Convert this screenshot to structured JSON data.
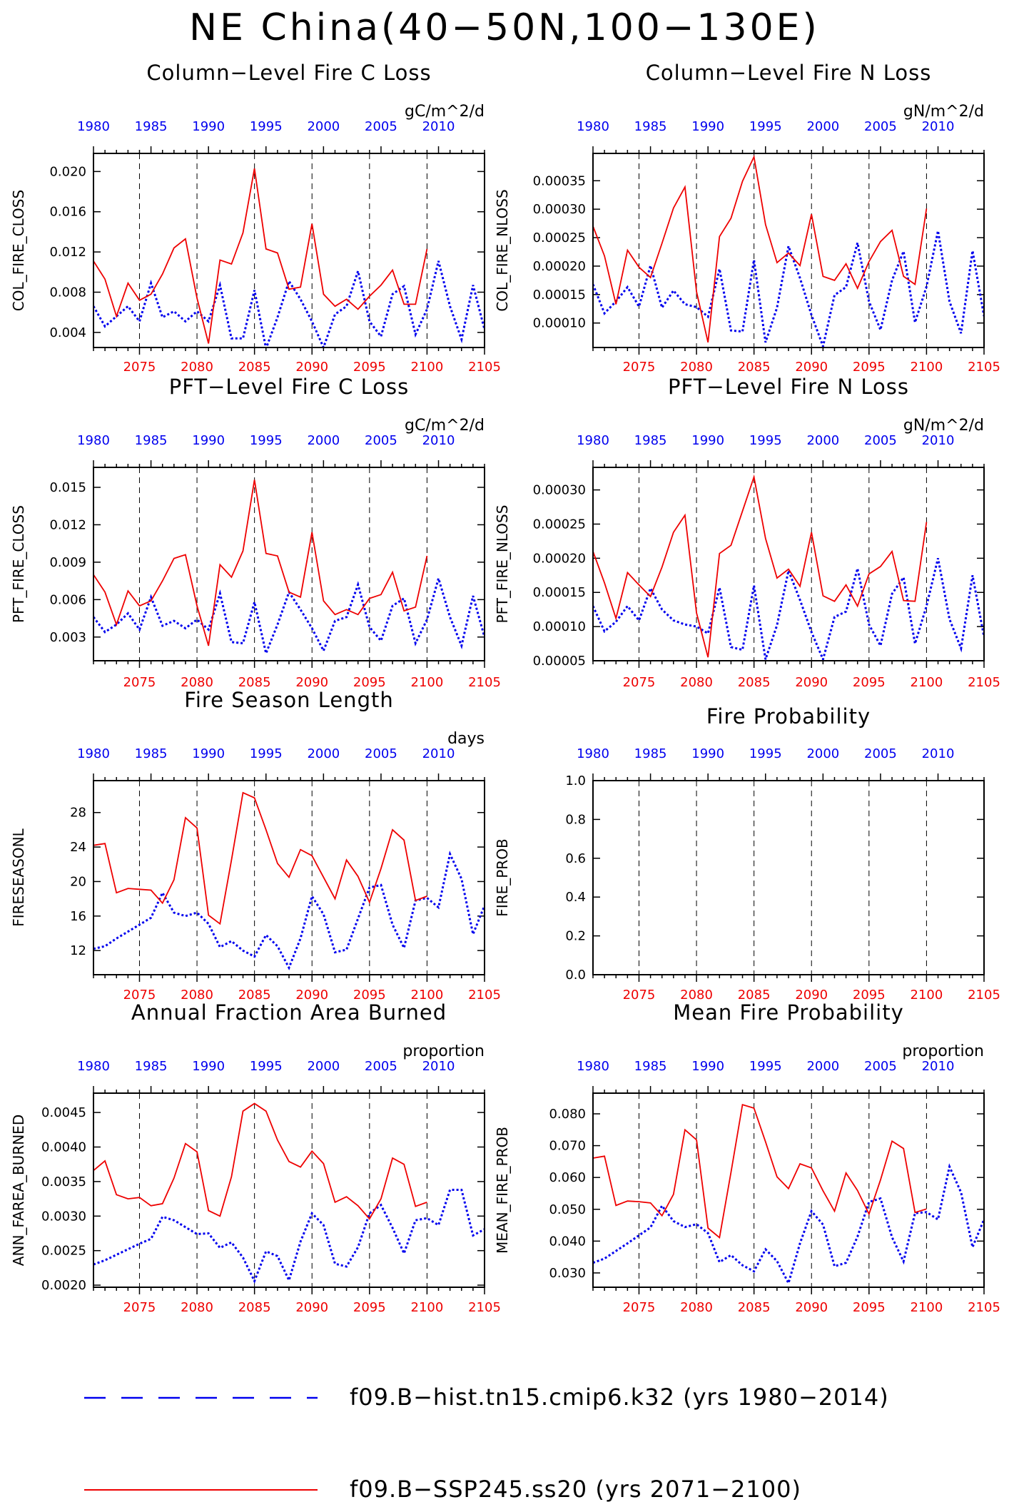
{
  "title": "NE China(40−50N,100−130E)",
  "colors": {
    "hist": "#0000ee",
    "future": "#ee0000",
    "axis": "#000000"
  },
  "legend": [
    {
      "series": "hist",
      "label": "f09.B−hist.tn15.cmip6.k32 (yrs 1980−2014)"
    },
    {
      "series": "future",
      "label": "f09.B−SSP245.ss20 (yrs 2071−2100)"
    }
  ],
  "chart_data": [
    {
      "type": "line",
      "title": "Column−Level Fire C Loss",
      "units": "gC/m^2/d",
      "ylabel": "COL_FIRE_CLOSS",
      "ylim": [
        0.0025,
        0.0218
      ],
      "yticks": [
        0.004,
        0.008,
        0.012,
        0.016,
        0.02
      ],
      "ytick_labels": [
        "0.004",
        "0.008",
        "0.012",
        "0.016",
        "0.020"
      ],
      "bottom_axis": {
        "range": [
          2071,
          2105
        ],
        "ticks": [
          2075,
          2080,
          2085,
          2090,
          2095,
          2100,
          2105
        ]
      },
      "top_axis": {
        "range": [
          1980,
          2014
        ],
        "ticks": [
          1980,
          1985,
          1990,
          1995,
          2000,
          2005,
          2010
        ]
      },
      "grid": "dashed vertical lines at 5-year ticks",
      "series": [
        {
          "key": "hist",
          "years": [
            1980,
            2014
          ],
          "values": [
            0.0066,
            0.0046,
            0.0056,
            0.0066,
            0.0051,
            0.0089,
            0.0055,
            0.0061,
            0.0051,
            0.0061,
            0.0051,
            0.0087,
            0.0034,
            0.0034,
            0.0082,
            0.0024,
            0.0055,
            0.0091,
            0.0073,
            0.0051,
            0.0025,
            0.0058,
            0.0066,
            0.0101,
            0.0051,
            0.0036,
            0.0078,
            0.0086,
            0.0038,
            0.0063,
            0.0111,
            0.0066,
            0.0033,
            0.0087,
            0.0043
          ]
        },
        {
          "key": "future",
          "years": [
            2071,
            2100
          ],
          "values": [
            0.0111,
            0.0093,
            0.0056,
            0.0089,
            0.0072,
            0.0078,
            0.0098,
            0.0124,
            0.0133,
            0.0074,
            0.0029,
            0.0112,
            0.0108,
            0.0139,
            0.0203,
            0.0123,
            0.0119,
            0.0083,
            0.0085,
            0.0148,
            0.0078,
            0.0066,
            0.0073,
            0.0063,
            0.0076,
            0.0087,
            0.0102,
            0.0068,
            0.0068,
            0.0123
          ]
        }
      ]
    },
    {
      "type": "line",
      "title": "Column−Level Fire N Loss",
      "units": "gN/m^2/d",
      "ylabel": "COL_FIRE_NLOSS",
      "ylim": [
        5.7e-05,
        0.000398
      ],
      "yticks": [
        0.0001,
        0.00015,
        0.0002,
        0.00025,
        0.0003,
        0.00035
      ],
      "ytick_labels": [
        "0.00010",
        "0.00015",
        "0.00020",
        "0.00025",
        "0.00030",
        "0.00035"
      ],
      "bottom_axis": {
        "range": [
          2071,
          2105
        ],
        "ticks": [
          2075,
          2080,
          2085,
          2090,
          2095,
          2100,
          2105
        ]
      },
      "top_axis": {
        "range": [
          1980,
          2014
        ],
        "ticks": [
          1980,
          1985,
          1990,
          1995,
          2000,
          2005,
          2010
        ]
      },
      "grid": "dashed vertical lines at 5-year ticks",
      "series": [
        {
          "key": "hist",
          "years": [
            1980,
            2014
          ],
          "values": [
            0.000168,
            0.000117,
            0.000138,
            0.000163,
            0.000129,
            0.000201,
            0.000127,
            0.000157,
            0.000133,
            0.000128,
            0.000111,
            0.000195,
            8.7e-05,
            8.5e-05,
            0.000211,
            6.6e-05,
            0.000127,
            0.000235,
            0.000179,
            0.000114,
            5.9e-05,
            0.000149,
            0.000163,
            0.000241,
            0.000138,
            8.8e-05,
            0.000175,
            0.000226,
            0.000101,
            0.000164,
            0.000262,
            0.000138,
            8.2e-05,
            0.000227,
            0.000112
          ]
        },
        {
          "key": "future",
          "years": [
            2071,
            2100
          ],
          "values": [
            0.00027,
            0.000218,
            0.000133,
            0.000228,
            0.000198,
            0.00018,
            0.00024,
            0.000302,
            0.000339,
            0.000155,
            6.6e-05,
            0.000252,
            0.000284,
            0.000349,
            0.000392,
            0.000273,
            0.000206,
            0.000223,
            0.000201,
            0.000291,
            0.000182,
            0.000175,
            0.000204,
            0.000161,
            0.000208,
            0.000243,
            0.000263,
            0.000182,
            0.000168,
            0.000301
          ]
        }
      ]
    },
    {
      "type": "line",
      "title": "PFT−Level Fire C Loss",
      "units": "gC/m^2/d",
      "ylabel": "PFT_FIRE_CLOSS",
      "ylim": [
        0.0011,
        0.0166
      ],
      "yticks": [
        0.003,
        0.006,
        0.009,
        0.012,
        0.015
      ],
      "ytick_labels": [
        "0.003",
        "0.006",
        "0.009",
        "0.012",
        "0.015"
      ],
      "bottom_axis": {
        "range": [
          2071,
          2105
        ],
        "ticks": [
          2075,
          2080,
          2085,
          2090,
          2095,
          2100,
          2105
        ]
      },
      "top_axis": {
        "range": [
          1980,
          2014
        ],
        "ticks": [
          1980,
          1985,
          1990,
          1995,
          2000,
          2005,
          2010
        ]
      },
      "grid": "dashed vertical lines at 5-year ticks",
      "series": [
        {
          "key": "hist",
          "years": [
            1980,
            2014
          ],
          "values": [
            0.0046,
            0.0034,
            0.004,
            0.0049,
            0.0036,
            0.0062,
            0.0039,
            0.0043,
            0.0037,
            0.0044,
            0.0036,
            0.0065,
            0.0026,
            0.0025,
            0.0058,
            0.0017,
            0.004,
            0.0066,
            0.0052,
            0.0037,
            0.0019,
            0.0043,
            0.0046,
            0.0072,
            0.0038,
            0.0027,
            0.0055,
            0.0061,
            0.0025,
            0.0044,
            0.0077,
            0.0046,
            0.0023,
            0.0063,
            0.003
          ]
        },
        {
          "key": "future",
          "years": [
            2071,
            2100
          ],
          "values": [
            0.008,
            0.0066,
            0.004,
            0.0067,
            0.0055,
            0.0059,
            0.0075,
            0.0093,
            0.0096,
            0.0055,
            0.0023,
            0.0088,
            0.0078,
            0.0099,
            0.0156,
            0.0097,
            0.0095,
            0.0066,
            0.0062,
            0.0114,
            0.0059,
            0.0048,
            0.0052,
            0.0048,
            0.0061,
            0.0064,
            0.0082,
            0.0051,
            0.0054,
            0.0095
          ]
        }
      ]
    },
    {
      "type": "line",
      "title": "PFT−Level Fire N Loss",
      "units": "gN/m^2/d",
      "ylabel": "PFT_FIRE_NLOSS",
      "ylim": [
        5e-05,
        0.000333
      ],
      "yticks": [
        5e-05,
        0.0001,
        0.00015,
        0.0002,
        0.00025,
        0.0003
      ],
      "ytick_labels": [
        "0.00005",
        "0.00010",
        "0.00015",
        "0.00020",
        "0.00025",
        "0.00030"
      ],
      "bottom_axis": {
        "range": [
          2071,
          2105
        ],
        "ticks": [
          2075,
          2080,
          2085,
          2090,
          2095,
          2100,
          2105
        ]
      },
      "top_axis": {
        "range": [
          1980,
          2014
        ],
        "ticks": [
          1980,
          1985,
          1990,
          1995,
          2000,
          2005,
          2010
        ]
      },
      "grid": "dashed vertical lines at 5-year ticks",
      "series": [
        {
          "key": "hist",
          "years": [
            1980,
            2014
          ],
          "values": [
            0.00013,
            9.3e-05,
            0.000107,
            0.00013,
            0.000109,
            0.000156,
            0.000125,
            0.000109,
            0.000103,
            0.0001,
            9e-05,
            0.000157,
            7e-05,
            6.6e-05,
            0.00016,
            5.2e-05,
            0.000102,
            0.000182,
            0.000139,
            9.2e-05,
            5.2e-05,
            0.000114,
            0.000122,
            0.000185,
            0.000103,
            7.2e-05,
            0.000148,
            0.000172,
            7.5e-05,
            0.00013,
            0.0002,
            0.000111,
            6.8e-05,
            0.000175,
            8.5e-05
          ]
        },
        {
          "key": "future",
          "years": [
            2071,
            2100
          ],
          "values": [
            0.00021,
            0.000164,
            0.000112,
            0.000179,
            0.000161,
            0.000144,
            0.000187,
            0.000238,
            0.000263,
            0.00012,
            5.5e-05,
            0.000207,
            0.000219,
            0.000269,
            0.000319,
            0.000229,
            0.000171,
            0.000184,
            0.000159,
            0.000238,
            0.000145,
            0.000137,
            0.000161,
            0.00013,
            0.000177,
            0.000188,
            0.00021,
            0.000138,
            0.000137,
            0.000253
          ]
        }
      ]
    },
    {
      "type": "line",
      "title": "Fire Season Length",
      "units": "days",
      "ylabel": "FIRESEASONL",
      "ylim": [
        9.2,
        31.7
      ],
      "yticks": [
        12,
        16,
        20,
        24,
        28
      ],
      "ytick_labels": [
        "12",
        "16",
        "20",
        "24",
        "28"
      ],
      "bottom_axis": {
        "range": [
          2071,
          2105
        ],
        "ticks": [
          2075,
          2080,
          2085,
          2090,
          2095,
          2100,
          2105
        ]
      },
      "top_axis": {
        "range": [
          1980,
          2014
        ],
        "ticks": [
          1980,
          1985,
          1990,
          1995,
          2000,
          2005,
          2010
        ]
      },
      "grid": "dashed vertical lines at 5-year ticks",
      "series": [
        {
          "key": "hist",
          "years": [
            1980,
            2014
          ],
          "values": [
            12.2,
            12.5,
            13.4,
            14.2,
            15.0,
            15.8,
            18.7,
            16.4,
            16.0,
            16.4,
            15.1,
            12.4,
            13.1,
            12.0,
            11.3,
            13.8,
            12.5,
            10.0,
            13.4,
            18.3,
            16.2,
            11.8,
            12.1,
            15.7,
            19.3,
            19.6,
            15.0,
            12.3,
            17.8,
            18.1,
            17.0,
            23.2,
            20.3,
            13.9,
            17.2
          ]
        },
        {
          "key": "future",
          "years": [
            2071,
            2100
          ],
          "values": [
            24.2,
            24.4,
            18.7,
            19.2,
            19.1,
            19.0,
            17.5,
            20.2,
            27.4,
            26.2,
            16.1,
            15.1,
            22.5,
            30.3,
            29.7,
            26.0,
            22.1,
            20.5,
            23.7,
            23.0,
            20.5,
            18.0,
            22.5,
            20.6,
            17.6,
            21.5,
            26.0,
            24.8,
            17.8,
            18.3
          ]
        }
      ]
    },
    {
      "type": "line",
      "title": "Fire Probability",
      "units": "",
      "ylabel": "FIRE_PROB",
      "ylim": [
        0.0,
        1.0
      ],
      "yticks": [
        0.0,
        0.2,
        0.4,
        0.6,
        0.8,
        1.0
      ],
      "ytick_labels": [
        "0.0",
        "0.2",
        "0.4",
        "0.6",
        "0.8",
        "1.0"
      ],
      "bottom_axis": {
        "range": [
          2071,
          2105
        ],
        "ticks": [
          2075,
          2080,
          2085,
          2090,
          2095,
          2100,
          2105
        ]
      },
      "top_axis": {
        "range": [
          1980,
          2014
        ],
        "ticks": [
          1980,
          1985,
          1990,
          1995,
          2000,
          2005,
          2010
        ]
      },
      "grid": "dashed vertical lines at 5-year ticks",
      "series": []
    },
    {
      "type": "line",
      "title": "Annual Fraction Area Burned",
      "units": "proportion",
      "ylabel": "ANN_FAREA_BURNED",
      "ylim": [
        0.00197,
        0.00478
      ],
      "yticks": [
        0.002,
        0.0025,
        0.003,
        0.0035,
        0.004,
        0.0045
      ],
      "ytick_labels": [
        "0.0020",
        "0.0025",
        "0.0030",
        "0.0035",
        "0.0040",
        "0.0045"
      ],
      "bottom_axis": {
        "range": [
          2071,
          2105
        ],
        "ticks": [
          2075,
          2080,
          2085,
          2090,
          2095,
          2100,
          2105
        ]
      },
      "top_axis": {
        "range": [
          1980,
          2014
        ],
        "ticks": [
          1980,
          1985,
          1990,
          1995,
          2000,
          2005,
          2010
        ]
      },
      "grid": "dashed vertical lines at 5-year ticks",
      "series": [
        {
          "key": "hist",
          "years": [
            1980,
            2014
          ],
          "values": [
            0.0023,
            0.00236,
            0.00244,
            0.00252,
            0.0026,
            0.00267,
            0.00299,
            0.00294,
            0.00284,
            0.00274,
            0.00275,
            0.00254,
            0.00262,
            0.0024,
            0.00206,
            0.00249,
            0.00242,
            0.00207,
            0.00263,
            0.00304,
            0.00287,
            0.00231,
            0.00227,
            0.00255,
            0.00304,
            0.00316,
            0.00283,
            0.00246,
            0.00294,
            0.00297,
            0.00287,
            0.00338,
            0.00338,
            0.00272,
            0.00281
          ]
        },
        {
          "key": "future",
          "years": [
            2071,
            2100
          ],
          "values": [
            0.00366,
            0.0038,
            0.00331,
            0.00325,
            0.00327,
            0.00315,
            0.00318,
            0.00355,
            0.00405,
            0.00393,
            0.00308,
            0.003,
            0.00357,
            0.00452,
            0.00463,
            0.00452,
            0.0041,
            0.00379,
            0.00371,
            0.00394,
            0.00376,
            0.0032,
            0.00328,
            0.00315,
            0.00296,
            0.00325,
            0.00384,
            0.00375,
            0.00314,
            0.0032
          ]
        }
      ]
    },
    {
      "type": "line",
      "title": "Mean Fire Probability",
      "units": "proportion",
      "ylabel": "MEAN_FIRE_PROB",
      "ylim": [
        0.0255,
        0.0865
      ],
      "yticks": [
        0.03,
        0.04,
        0.05,
        0.06,
        0.07,
        0.08
      ],
      "ytick_labels": [
        "0.030",
        "0.040",
        "0.050",
        "0.060",
        "0.070",
        "0.080"
      ],
      "bottom_axis": {
        "range": [
          2071,
          2105
        ],
        "ticks": [
          2075,
          2080,
          2085,
          2090,
          2095,
          2100,
          2105
        ]
      },
      "top_axis": {
        "range": [
          1980,
          2014
        ],
        "ticks": [
          1980,
          1985,
          1990,
          1995,
          2000,
          2005,
          2010
        ]
      },
      "grid": "dashed vertical lines at 5-year ticks",
      "series": [
        {
          "key": "hist",
          "years": [
            1980,
            2014
          ],
          "values": [
            0.0332,
            0.0345,
            0.0369,
            0.0393,
            0.0418,
            0.0443,
            0.0511,
            0.0463,
            0.0444,
            0.0453,
            0.0425,
            0.0334,
            0.0356,
            0.0324,
            0.0305,
            0.0374,
            0.0337,
            0.0268,
            0.0393,
            0.0494,
            0.0452,
            0.0321,
            0.0332,
            0.0414,
            0.0523,
            0.0534,
            0.0412,
            0.0336,
            0.0488,
            0.0491,
            0.0468,
            0.0634,
            0.0553,
            0.0381,
            0.0468
          ]
        },
        {
          "key": "future",
          "years": [
            2071,
            2100
          ],
          "values": [
            0.0661,
            0.0667,
            0.0512,
            0.0526,
            0.0524,
            0.052,
            0.048,
            0.0547,
            0.075,
            0.0718,
            0.0441,
            0.0411,
            0.0616,
            0.0829,
            0.0818,
            0.0712,
            0.0602,
            0.0565,
            0.0643,
            0.063,
            0.0558,
            0.0494,
            0.0614,
            0.0559,
            0.0485,
            0.0592,
            0.0714,
            0.0691,
            0.049,
            0.0501
          ]
        }
      ]
    }
  ]
}
